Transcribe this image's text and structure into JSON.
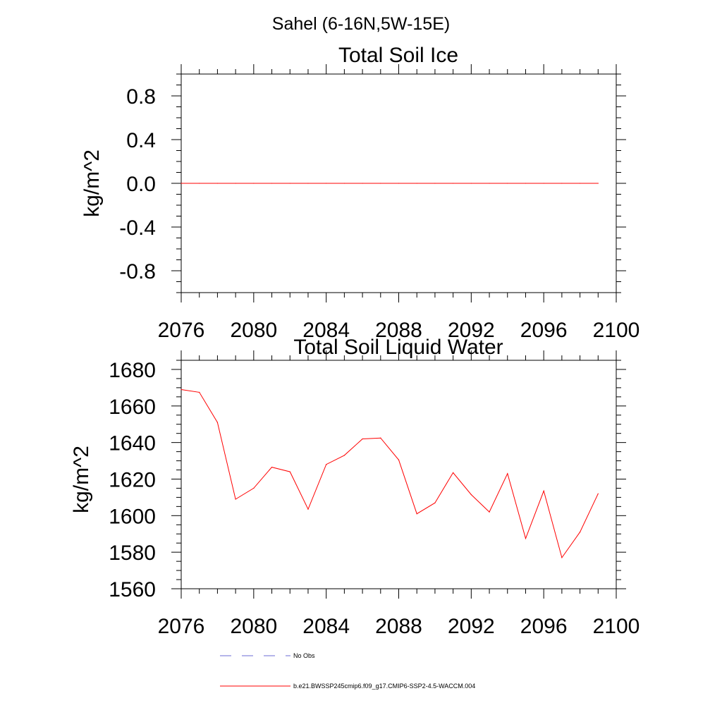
{
  "figure_title": "Sahel (6-16N,5W-15E)",
  "colors": {
    "series": "#ff0000",
    "obs": "#6b6bd6",
    "axis": "#000000"
  },
  "chart_data": [
    {
      "type": "line",
      "title": "Total Soil Ice",
      "xlabel": "",
      "ylabel": "kg/m^2",
      "xlim": [
        2076,
        2100
      ],
      "ylim": [
        -1.0,
        1.0
      ],
      "xticks": [
        2076,
        2080,
        2084,
        2088,
        2092,
        2096,
        2100
      ],
      "yticks": [
        -0.8,
        -0.4,
        0.0,
        0.4,
        0.8
      ],
      "ytick_labels": [
        "-0.8",
        "-0.4",
        "0.0",
        "0.4",
        "0.8"
      ],
      "grid": false,
      "series": [
        {
          "name": "b.e21.BWSSP245cmip6.f09_g17.CMIP6-SSP2-4.5-WACCM.004",
          "x": [
            2076,
            2077,
            2078,
            2079,
            2080,
            2081,
            2082,
            2083,
            2084,
            2085,
            2086,
            2087,
            2088,
            2089,
            2090,
            2091,
            2092,
            2093,
            2094,
            2095,
            2096,
            2097,
            2098,
            2099
          ],
          "values": [
            0,
            0,
            0,
            0,
            0,
            0,
            0,
            0,
            0,
            0,
            0,
            0,
            0,
            0,
            0,
            0,
            0,
            0,
            0,
            0,
            0,
            0,
            0,
            0
          ]
        }
      ]
    },
    {
      "type": "line",
      "title": "Total Soil Liquid Water",
      "xlabel": "",
      "ylabel": "kg/m^2",
      "xlim": [
        2076,
        2100
      ],
      "ylim": [
        1560,
        1685
      ],
      "xticks": [
        2076,
        2080,
        2084,
        2088,
        2092,
        2096,
        2100
      ],
      "yticks": [
        1560,
        1580,
        1600,
        1620,
        1640,
        1660,
        1680
      ],
      "ytick_labels": [
        "1560",
        "1580",
        "1600",
        "1620",
        "1640",
        "1660",
        "1680"
      ],
      "grid": false,
      "series": [
        {
          "name": "b.e21.BWSSP245cmip6.f09_g17.CMIP6-SSP2-4.5-WACCM.004",
          "x": [
            2076,
            2077,
            2078,
            2079,
            2080,
            2081,
            2082,
            2083,
            2084,
            2085,
            2086,
            2087,
            2088,
            2089,
            2090,
            2091,
            2092,
            2093,
            2094,
            2095,
            2096,
            2097,
            2098,
            2099
          ],
          "values": [
            1669,
            1667.5,
            1651,
            1609,
            1615,
            1626.5,
            1624,
            1603.5,
            1628,
            1633,
            1642,
            1642.5,
            1630.5,
            1601,
            1607,
            1623.5,
            1611.5,
            1602,
            1623,
            1587.5,
            1613.5,
            1577,
            1591,
            1612
          ]
        }
      ]
    }
  ],
  "legend": {
    "placement": "bottom",
    "items": [
      {
        "label": "No Obs",
        "style": "dashed",
        "color": "#6b6bd6"
      },
      {
        "label": "b.e21.BWSSP245cmip6.f09_g17.CMIP6-SSP2-4.5-WACCM.004",
        "style": "solid",
        "color": "#ff0000"
      }
    ]
  }
}
